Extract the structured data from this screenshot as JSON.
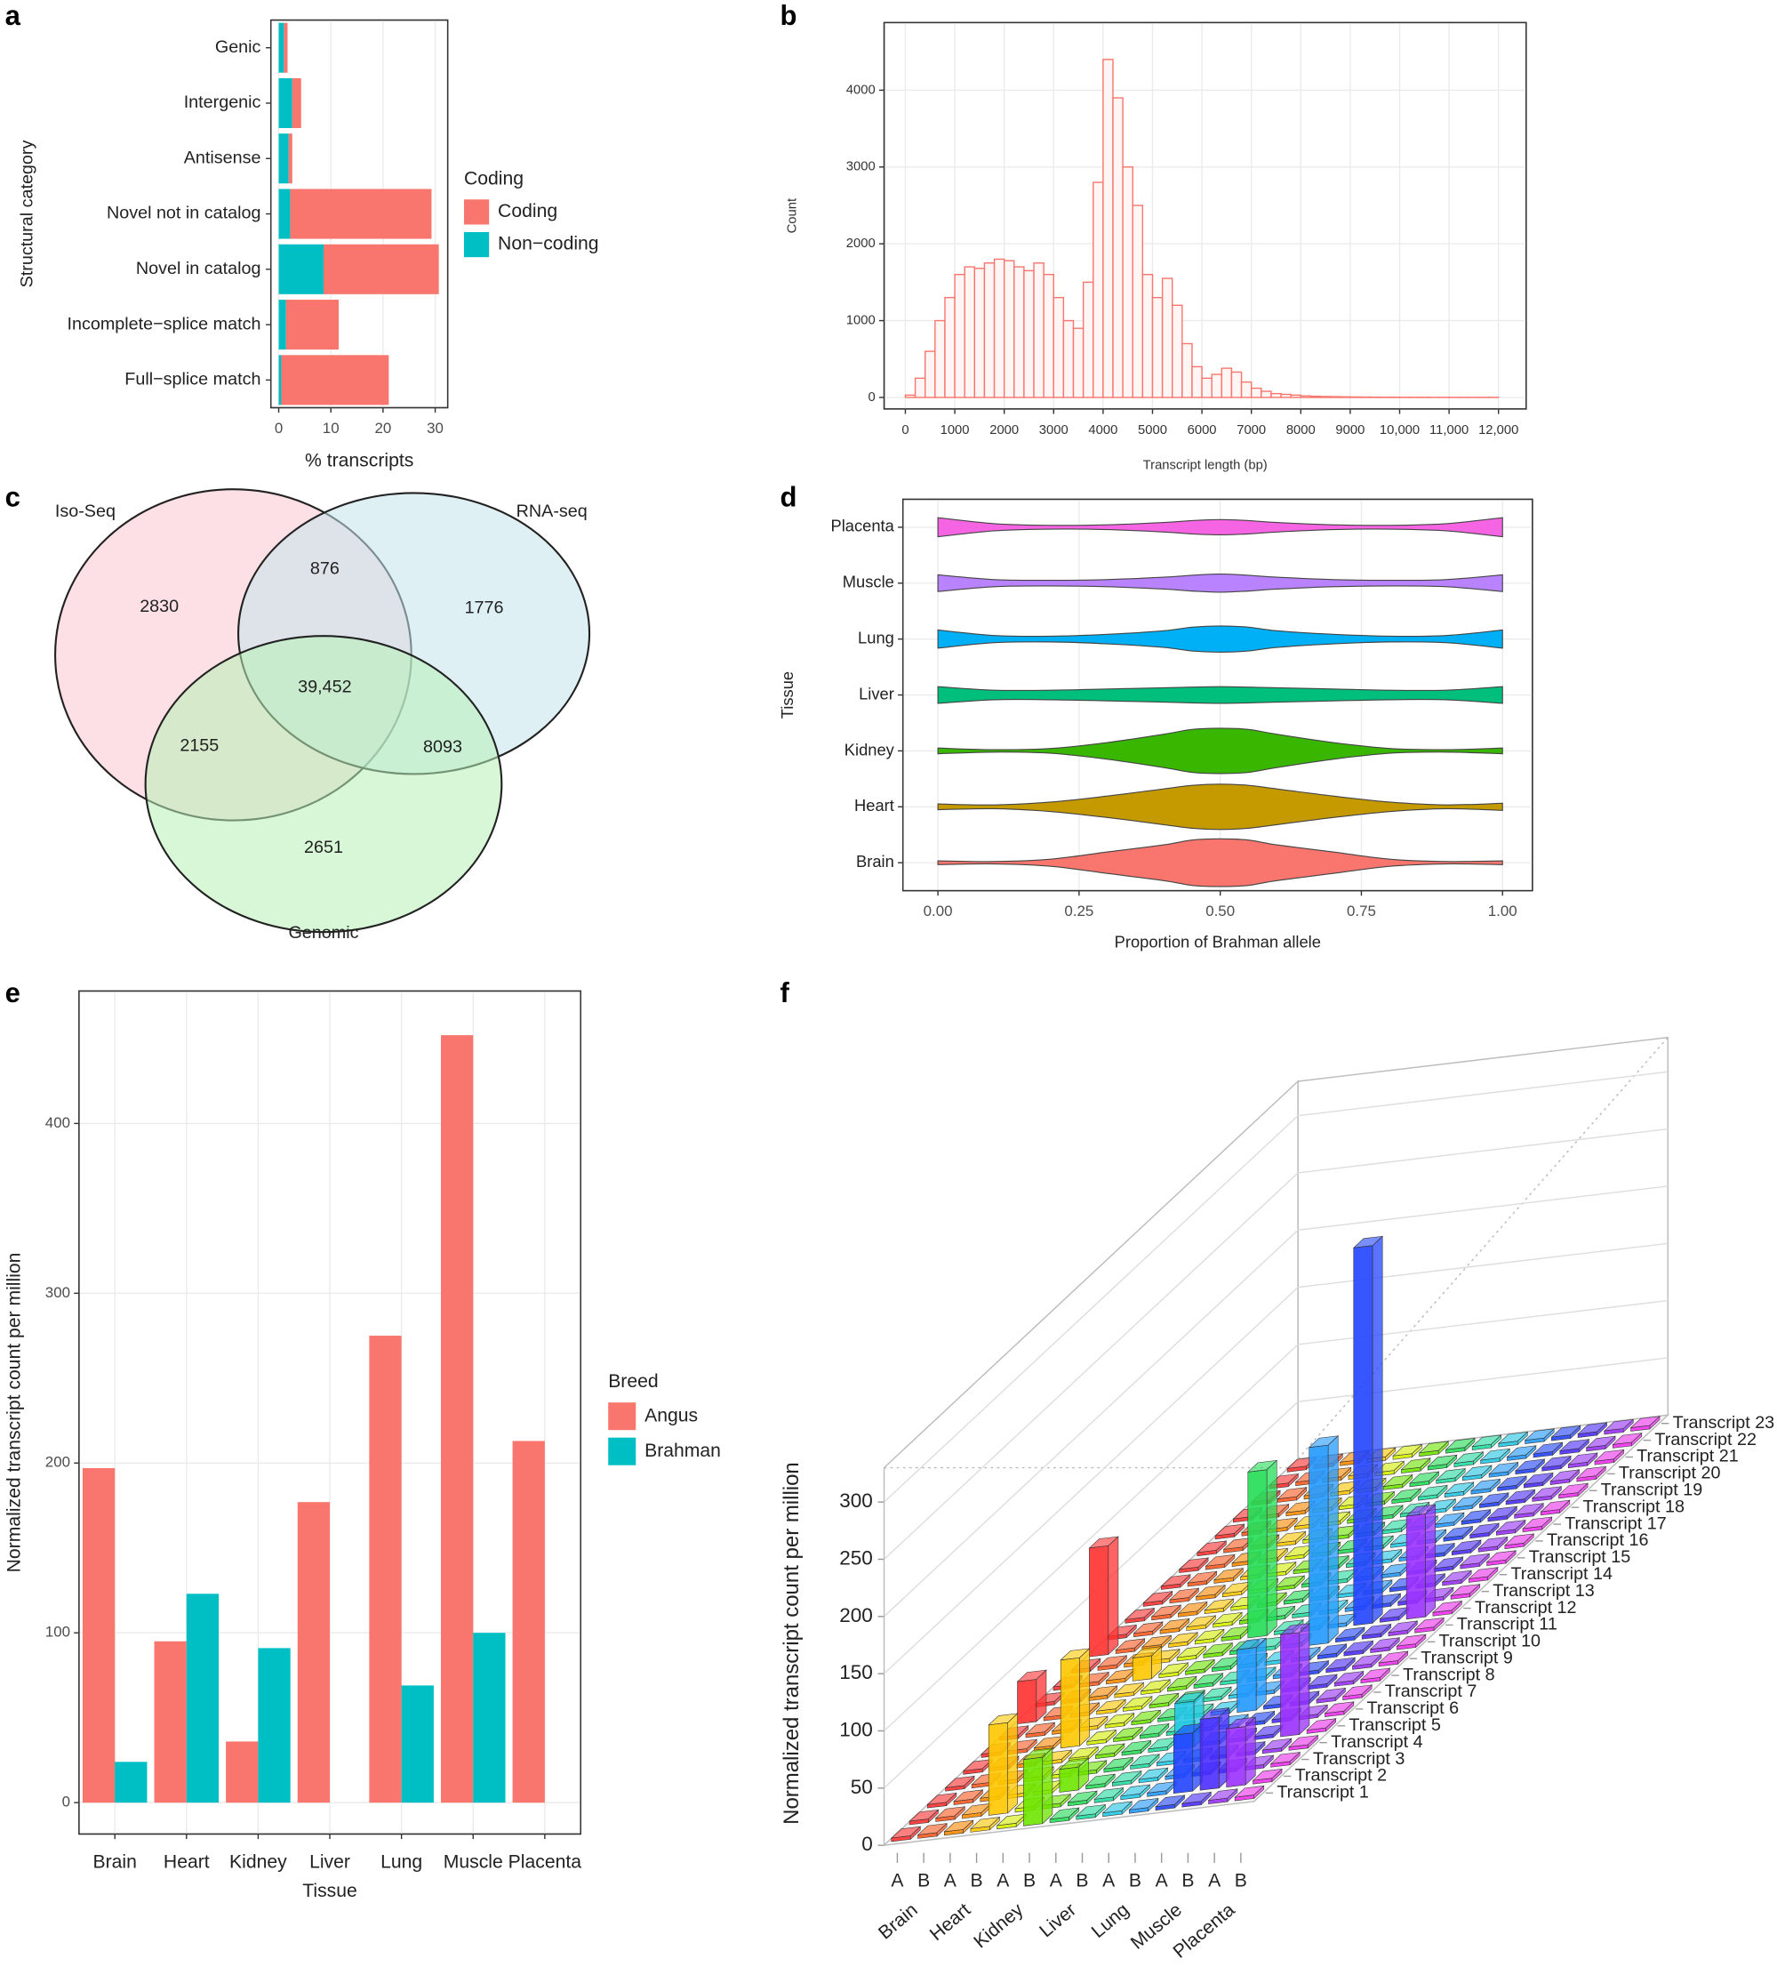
{
  "chart_data": [
    {
      "type": "bar",
      "panel": "a",
      "orientation": "horizontal",
      "stacked": true,
      "categories": [
        "Genic",
        "Intergenic",
        "Antisense",
        "Novel not in catalog",
        "Novel in catalog",
        "Incomplete−splice match",
        "Full−splice match"
      ],
      "series": [
        {
          "name": "Coding",
          "color": "#f8766d",
          "values": [
            0.7,
            1.7,
            0.7,
            27.1,
            22.1,
            10.1,
            20.6
          ]
        },
        {
          "name": "Non−coding",
          "color": "#00bfc4",
          "values": [
            1.0,
            2.6,
            1.9,
            2.2,
            8.6,
            1.4,
            0.5
          ]
        }
      ],
      "xlabel": "% transcripts",
      "ylabel": "Structural category",
      "legend_title": "Coding",
      "xlim": [
        -1.5,
        32.4
      ],
      "xticks": [
        0,
        10,
        20,
        30
      ],
      "grid": true
    },
    {
      "type": "histogram",
      "panel": "b",
      "color": "#f8766d",
      "bins": [
        0,
        200,
        400,
        600,
        800,
        1000,
        1200,
        1400,
        1600,
        1800,
        2000,
        2200,
        2400,
        2600,
        2800,
        3000,
        3200,
        3400,
        3600,
        3800,
        4000,
        4200,
        4400,
        4600,
        4800,
        5000,
        5200,
        5400,
        5600,
        5800,
        6000,
        6200,
        6400,
        6600,
        6800,
        7000,
        7200,
        7400,
        7600,
        7800,
        8000,
        8200,
        8400,
        8600,
        8800,
        9000,
        9200,
        9400,
        9600,
        9800,
        10000,
        10200,
        10400,
        10600,
        10800,
        11000,
        11200,
        11400,
        11600,
        11800,
        12000
      ],
      "values": [
        30,
        250,
        600,
        1000,
        1300,
        1600,
        1700,
        1680,
        1750,
        1800,
        1780,
        1700,
        1650,
        1750,
        1600,
        1300,
        1000,
        900,
        1500,
        2800,
        4400,
        3900,
        3000,
        2500,
        1600,
        1300,
        1550,
        1200,
        700,
        400,
        250,
        300,
        380,
        330,
        200,
        120,
        80,
        50,
        40,
        30,
        20,
        15,
        12,
        10,
        8,
        6,
        5,
        4,
        3,
        3,
        2,
        2,
        2,
        1,
        1,
        1,
        1,
        1,
        1,
        1
      ],
      "xlabel": "Transcript length (bp)",
      "ylabel": "Count",
      "xlim": [
        -430,
        12560
      ],
      "xticks": [
        0,
        1000,
        2000,
        3000,
        4000,
        5000,
        6000,
        7000,
        8000,
        9000,
        {
          "value": 10000,
          "label": "10,000"
        },
        {
          "value": 11000,
          "label": "11,000"
        },
        {
          "value": 12000,
          "label": "12,000"
        }
      ],
      "ylim": [
        -150,
        4880
      ],
      "yticks": [
        0,
        1000,
        2000,
        3000,
        4000
      ],
      "grid": true
    },
    {
      "type": "venn",
      "panel": "c",
      "sets": [
        "Iso-Seq",
        "RNA-seq",
        "Genomic"
      ],
      "colors": [
        "#f9c6d0",
        "#c5e3ec",
        "#b6f0b6"
      ],
      "values": [
        2830,
        876,
        1776,
        2155,
        39452,
        8093,
        2651
      ],
      "value_labels": [
        "2830",
        "876",
        "1776",
        "2155",
        "39,452",
        "8093",
        "2651"
      ]
    },
    {
      "type": "violin",
      "panel": "d",
      "categories": [
        "Placenta",
        "Muscle",
        "Lung",
        "Liver",
        "Kidney",
        "Heart",
        "Brain"
      ],
      "colors": [
        "#f564e3",
        "#b983ff",
        "#00b0f6",
        "#00bf7d",
        "#39b600",
        "#c49a00",
        "#f8766d"
      ],
      "x": [
        0,
        0.1,
        0.2,
        0.3,
        0.4,
        0.45,
        0.5,
        0.55,
        0.6,
        0.7,
        0.8,
        0.9,
        1
      ],
      "values": [
        [
          0.4,
          0.15,
          0.08,
          0.1,
          0.2,
          0.28,
          0.32,
          0.28,
          0.2,
          0.1,
          0.08,
          0.15,
          0.4
        ],
        [
          0.35,
          0.15,
          0.12,
          0.15,
          0.25,
          0.33,
          0.38,
          0.33,
          0.25,
          0.15,
          0.12,
          0.15,
          0.35
        ],
        [
          0.38,
          0.15,
          0.12,
          0.2,
          0.35,
          0.5,
          0.55,
          0.5,
          0.35,
          0.2,
          0.12,
          0.15,
          0.38
        ],
        [
          0.35,
          0.2,
          0.2,
          0.25,
          0.3,
          0.33,
          0.35,
          0.33,
          0.3,
          0.25,
          0.2,
          0.2,
          0.35
        ],
        [
          0.12,
          0.05,
          0.1,
          0.35,
          0.7,
          0.9,
          0.95,
          0.9,
          0.7,
          0.35,
          0.1,
          0.05,
          0.12
        ],
        [
          0.12,
          0.08,
          0.2,
          0.45,
          0.75,
          0.9,
          0.95,
          0.9,
          0.75,
          0.45,
          0.2,
          0.08,
          0.15
        ],
        [
          0.08,
          0.05,
          0.15,
          0.45,
          0.75,
          0.95,
          1.0,
          0.95,
          0.75,
          0.45,
          0.15,
          0.05,
          0.08
        ]
      ],
      "xlabel": "Proportion of Brahman allele",
      "ylabel": "Tissue",
      "xlim": [
        -0.062,
        1.053
      ],
      "xticks": [
        {
          "value": 0,
          "label": "0.00"
        },
        {
          "value": 0.25,
          "label": "0.25"
        },
        {
          "value": 0.5,
          "label": "0.50"
        },
        {
          "value": 0.75,
          "label": "0.75"
        },
        {
          "value": 1,
          "label": "1.00"
        }
      ],
      "grid": true
    },
    {
      "type": "bar",
      "panel": "e",
      "orientation": "vertical",
      "categories": [
        "Brain",
        "Heart",
        "Kidney",
        "Liver",
        "Lung",
        "Muscle",
        "Placenta"
      ],
      "series": [
        {
          "name": "Angus",
          "color": "#f8766d",
          "values": [
            197,
            95,
            36,
            177,
            275,
            452,
            213
          ]
        },
        {
          "name": "Brahman",
          "color": "#00bfc4",
          "values": [
            24,
            123,
            91,
            null,
            69,
            100,
            null
          ]
        }
      ],
      "xlabel": "Tissue",
      "ylabel": "Normalized transcript count per million",
      "legend_title": "Breed",
      "ylim": [
        -18.5,
        478
      ],
      "yticks": [
        0,
        100,
        200,
        300,
        400
      ],
      "grid": true
    },
    {
      "type": "bar3d",
      "panel": "f",
      "tissues": [
        "Brain",
        "Heart",
        "Kidney",
        "Liver",
        "Lung",
        "Muscle",
        "Placenta"
      ],
      "breeds": [
        "A",
        "B"
      ],
      "transcripts": [
        "Transcript 1",
        "Transcript 2",
        "Transcript 3",
        "Transcript 4",
        "Transcript 5",
        "Transcript 6",
        "Transcript 7",
        "Transcript 8",
        "Transcript 9",
        "Transcript 10",
        "Transcript 11",
        "Transcript 12",
        "Transcript 13",
        "Transcript 14",
        "Transcript 15",
        "Transcript 16",
        "Transcript 17",
        "Transcript 18",
        "Transcript 19",
        "Transcript 20",
        "Transcript 21",
        "Transcript 22",
        "Transcript 23"
      ],
      "colors": [
        "#ff3030",
        "#ff5a1f",
        "#ff8a00",
        "#ffc800",
        "#d6f000",
        "#6ee600",
        "#22dd55",
        "#22dda0",
        "#22c8e6",
        "#2299ff",
        "#2244ff",
        "#4a2cff",
        "#9a30ff",
        "#ee30ee"
      ],
      "values": [
        [
          3,
          3,
          3,
          3,
          3,
          3,
          3,
          37,
          3,
          3,
          3,
          95,
          3,
          3,
          3,
          3,
          3,
          3,
          3,
          3,
          3,
          3,
          3
        ],
        [
          3,
          3,
          3,
          3,
          3,
          3,
          3,
          3,
          3,
          3,
          3,
          3,
          3,
          3,
          3,
          3,
          3,
          3,
          3,
          3,
          3,
          3,
          3
        ],
        [
          3,
          3,
          3,
          3,
          3,
          3,
          3,
          3,
          3,
          3,
          3,
          3,
          3,
          3,
          3,
          3,
          3,
          3,
          3,
          3,
          3,
          3,
          3
        ],
        [
          3,
          79,
          3,
          3,
          3,
          77,
          3,
          3,
          3,
          20,
          3,
          3,
          3,
          3,
          3,
          3,
          3,
          3,
          3,
          3,
          3,
          3,
          3
        ],
        [
          3,
          3,
          3,
          3,
          3,
          3,
          3,
          3,
          3,
          3,
          3,
          3,
          3,
          3,
          3,
          3,
          3,
          3,
          3,
          3,
          3,
          3,
          3
        ],
        [
          58,
          3,
          20,
          3,
          3,
          3,
          3,
          3,
          3,
          3,
          3,
          3,
          3,
          3,
          3,
          3,
          3,
          3,
          3,
          3,
          3,
          3,
          3
        ],
        [
          3,
          3,
          3,
          3,
          3,
          3,
          3,
          3,
          3,
          3,
          3,
          145,
          3,
          3,
          3,
          3,
          3,
          3,
          3,
          3,
          3,
          3,
          3
        ],
        [
          3,
          3,
          3,
          3,
          3,
          3,
          3,
          3,
          3,
          3,
          3,
          3,
          3,
          3,
          3,
          3,
          3,
          3,
          3,
          3,
          3,
          3,
          3
        ],
        [
          3,
          3,
          3,
          3,
          40,
          3,
          3,
          3,
          3,
          3,
          3,
          3,
          3,
          3,
          3,
          3,
          3,
          3,
          3,
          3,
          3,
          3,
          3
        ],
        [
          3,
          3,
          3,
          3,
          3,
          3,
          55,
          3,
          3,
          3,
          173,
          3,
          3,
          3,
          3,
          3,
          3,
          3,
          3,
          3,
          3,
          3,
          3
        ],
        [
          3,
          51,
          3,
          3,
          3,
          3,
          3,
          3,
          3,
          3,
          3,
          330,
          3,
          3,
          3,
          3,
          3,
          3,
          3,
          3,
          3,
          3,
          3
        ],
        [
          3,
          62,
          3,
          3,
          3,
          3,
          3,
          3,
          3,
          3,
          3,
          3,
          3,
          3,
          3,
          3,
          3,
          3,
          3,
          3,
          3,
          3,
          3
        ],
        [
          3,
          51,
          3,
          3,
          89,
          3,
          3,
          3,
          3,
          3,
          3,
          90,
          3,
          3,
          3,
          3,
          3,
          3,
          3,
          3,
          3,
          3,
          3
        ],
        [
          3,
          3,
          3,
          3,
          3,
          3,
          3,
          3,
          3,
          3,
          3,
          3,
          3,
          3,
          3,
          3,
          3,
          3,
          3,
          3,
          3,
          3,
          3
        ]
      ],
      "ylabel": "Normalized transcript count per million",
      "ylim": [
        0,
        330
      ],
      "yticks": [
        0,
        50,
        100,
        150,
        200,
        250,
        300
      ]
    }
  ]
}
